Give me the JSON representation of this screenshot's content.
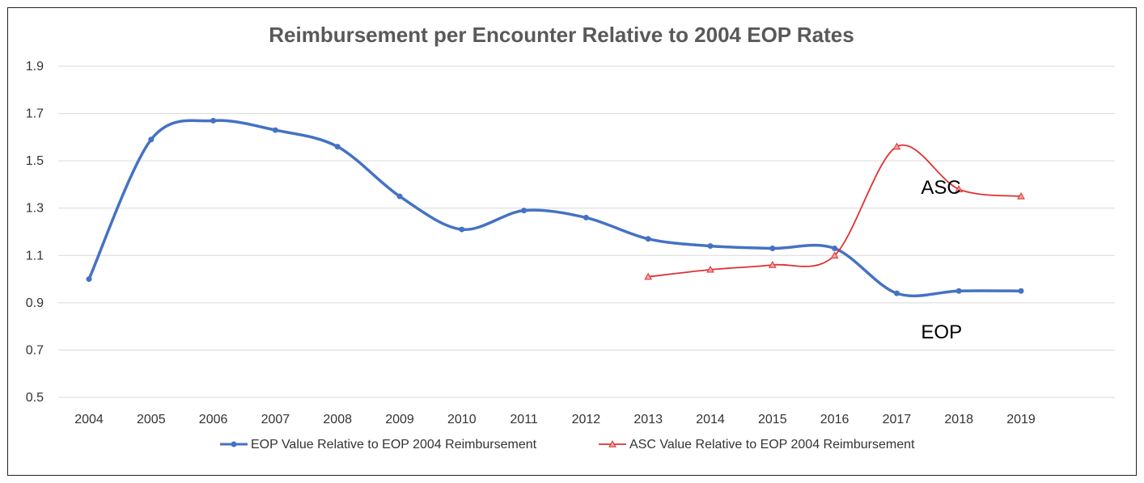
{
  "chart_data": {
    "type": "line",
    "title": "Reimbursement per Encounter Relative to 2004 EOP Rates",
    "xlabel": "",
    "ylabel": "",
    "categories": [
      "2004",
      "2005",
      "2006",
      "2007",
      "2008",
      "2009",
      "2010",
      "2011",
      "2012",
      "2013",
      "2014",
      "2015",
      "2016",
      "2017",
      "2018",
      "2019"
    ],
    "ylim": [
      0.5,
      1.9
    ],
    "yticks": [
      0.5,
      0.7,
      0.9,
      1.1,
      1.3,
      1.5,
      1.7,
      1.9
    ],
    "ytick_labels": [
      "0.5",
      "0.7",
      "0.9",
      "1.1",
      "1.3",
      "1.5",
      "1.7",
      "1.9"
    ],
    "grid": true,
    "legend_position": "bottom",
    "series": [
      {
        "name": "EOP Value Relative to EOP 2004 Reimbursement",
        "color": "#4472C4",
        "marker": "circle",
        "values": [
          1.0,
          1.59,
          1.67,
          1.63,
          1.56,
          1.35,
          1.21,
          1.29,
          1.26,
          1.17,
          1.14,
          1.13,
          1.13,
          0.94,
          0.95,
          0.95
        ]
      },
      {
        "name": "ASC Value Relative to EOP 2004 Reimbursement",
        "color": "#E03030",
        "marker": "triangle",
        "values": [
          null,
          null,
          null,
          null,
          null,
          null,
          null,
          null,
          null,
          1.01,
          1.04,
          1.06,
          1.1,
          1.56,
          1.38,
          1.35
        ]
      }
    ],
    "annotations": [
      {
        "text": "ASC",
        "at_category": "2017",
        "at_value": 1.36
      },
      {
        "text": "EOP",
        "at_category": "2017",
        "at_value": 0.75
      }
    ]
  }
}
